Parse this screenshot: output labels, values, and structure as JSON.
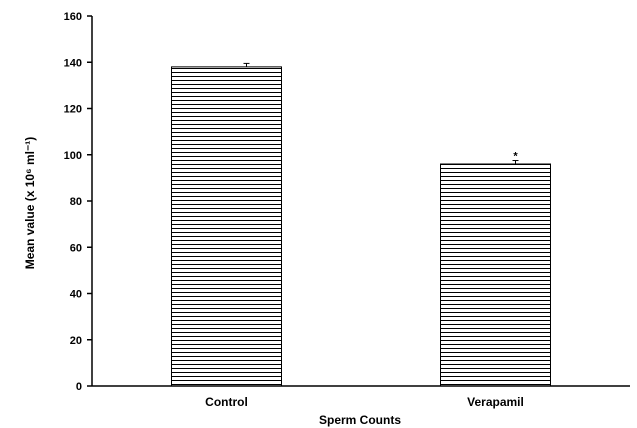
{
  "chart_data": {
    "type": "bar",
    "categories": [
      "Control",
      "Verapamil"
    ],
    "values": [
      138,
      96
    ],
    "errors": [
      1.5,
      1.5
    ],
    "annotations": [
      "",
      "*"
    ],
    "xlabel": "Sperm Counts",
    "ylabel": "Mean value (x 10⁶ ml⁻¹)",
    "ylim": [
      0,
      160
    ],
    "yticks": [
      0,
      20,
      40,
      60,
      80,
      100,
      120,
      140,
      160
    ],
    "grid": false,
    "legend": "none",
    "bar_fill": "horizontal-hatch",
    "colors": {
      "bar_stroke": "#000000",
      "bar_fill": "#ffffff",
      "axis": "#000000"
    }
  }
}
